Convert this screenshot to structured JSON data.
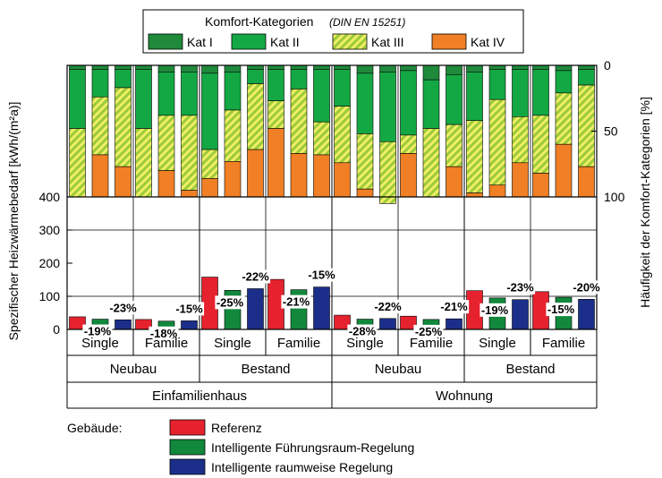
{
  "legend_top": {
    "title": "Komfort-Kategorien",
    "title_note": "(DIN EN 15251)",
    "items": [
      {
        "label": "Kat I",
        "pattern": "solid",
        "color": "#1f8a3b"
      },
      {
        "label": "Kat II",
        "pattern": "solid",
        "color": "#14a844"
      },
      {
        "label": "Kat III",
        "pattern": "hatch",
        "color": "#9ccc3c",
        "hatch_color": "#f4f066"
      },
      {
        "label": "Kat IV",
        "pattern": "solid",
        "color": "#f07f25"
      }
    ]
  },
  "legend_bottom": {
    "title": "Gebäude:",
    "items": [
      {
        "label": "Referenz",
        "color": "#e6222e"
      },
      {
        "label": "Intelligente Führungsraum-Regelung",
        "color": "#12883d"
      },
      {
        "label": "Intelligente raumweise Regelung",
        "color": "#1b2f8a"
      }
    ]
  },
  "axes": {
    "left_label": "Spezifischer Heizwärmebedarf [kWh/(m²a)]",
    "right_label": "Häufigkeit der Komfort-Kategorien [%]",
    "left_ticks": [
      "0",
      "100",
      "200",
      "300",
      "400"
    ],
    "right_ticks": [
      "0",
      "50",
      "100"
    ]
  },
  "chart_data": {
    "type": "bar",
    "ylim": [
      0,
      400
    ],
    "ylabel": "Spezifischer Heizwärmebedarf [kWh/(m²a)]",
    "y2label": "Häufigkeit der Komfort-Kategorien [%]",
    "y2lim": [
      100,
      0
    ],
    "groups_level1": [
      "Single",
      "Familie",
      "Single",
      "Familie",
      "Single",
      "Familie",
      "Single",
      "Familie"
    ],
    "groups_level2": [
      "Neubau",
      "Bestand",
      "Neubau",
      "Bestand"
    ],
    "groups_level3": [
      "Einfamilienhaus",
      "Wohnung"
    ],
    "series": [
      {
        "name": "Referenz",
        "color": "#e6222e",
        "values": [
          38,
          30,
          158,
          151,
          43,
          40,
          117,
          114
        ]
      },
      {
        "name": "Intelligente Führungsraum-Regelung",
        "color": "#12883d",
        "values": [
          31,
          25,
          118,
          120,
          31,
          30,
          95,
          97
        ]
      },
      {
        "name": "Intelligente raumweise Regelung",
        "color": "#1b2f8a",
        "values": [
          29,
          26,
          123,
          128,
          33,
          32,
          90,
          91
        ]
      }
    ],
    "percent_labels": {
      "green": [
        "-19%",
        "-18%",
        "-25%",
        "-21%",
        "-28%",
        "-25%",
        "-19%",
        "-15%"
      ],
      "blue": [
        "-23%",
        "-15%",
        "-22%",
        "-15%",
        "-22%",
        "-21%",
        "-23%",
        "-20%"
      ]
    },
    "comfort_categories": {
      "categories": [
        "Kat I",
        "Kat II",
        "Kat III",
        "Kat IV"
      ],
      "unit": "%",
      "bars": [
        [
          3,
          45,
          52,
          0
        ],
        [
          3,
          21,
          44,
          32
        ],
        [
          3,
          14,
          60,
          23
        ],
        [
          3,
          45,
          52,
          0
        ],
        [
          5,
          33,
          42,
          20
        ],
        [
          5,
          33,
          57,
          5
        ],
        [
          6,
          58,
          22,
          14
        ],
        [
          5,
          29,
          39,
          27
        ],
        [
          3,
          11,
          50,
          36
        ],
        [
          3,
          24,
          21,
          52
        ],
        [
          3,
          15,
          49,
          33
        ],
        [
          3,
          40,
          25,
          32
        ],
        [
          3,
          28,
          43,
          26
        ],
        [
          6,
          46,
          42,
          6
        ],
        [
          5,
          53,
          47,
          0
        ],
        [
          4,
          49,
          14,
          33
        ],
        [
          11,
          37,
          52,
          0
        ],
        [
          7,
          38,
          32,
          23
        ],
        [
          5,
          37,
          55,
          3
        ],
        [
          3,
          23,
          65,
          9
        ],
        [
          3,
          36,
          35,
          26
        ],
        [
          3,
          35,
          44,
          18
        ],
        [
          4,
          17,
          39,
          40
        ],
        [
          3,
          12,
          62,
          23
        ]
      ]
    }
  }
}
